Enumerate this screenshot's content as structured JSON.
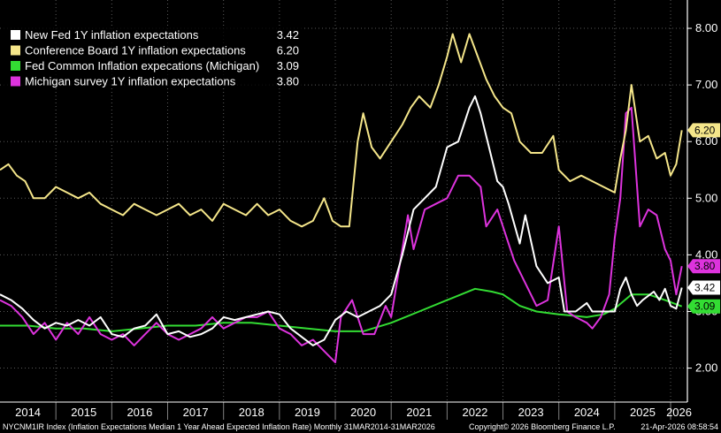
{
  "chart_data": {
    "type": "line",
    "ylim": [
      1.4,
      8.5
    ],
    "xlim": [
      2014.0,
      2026.3
    ],
    "yticks": [
      {
        "value": 2,
        "label": "2.00"
      },
      {
        "value": 3,
        "label": "3.00"
      },
      {
        "value": 4,
        "label": "4.00"
      },
      {
        "value": 5,
        "label": "5.00"
      },
      {
        "value": 6,
        "label": "6.00"
      },
      {
        "value": 7,
        "label": "7.00"
      },
      {
        "value": 8,
        "label": "8.00"
      }
    ],
    "xticks": [
      {
        "value": 2014.5,
        "label": "2014"
      },
      {
        "value": 2015.5,
        "label": "2015"
      },
      {
        "value": 2016.5,
        "label": "2016"
      },
      {
        "value": 2017.5,
        "label": "2017"
      },
      {
        "value": 2018.5,
        "label": "2018"
      },
      {
        "value": 2019.5,
        "label": "2019"
      },
      {
        "value": 2020.5,
        "label": "2020"
      },
      {
        "value": 2021.5,
        "label": "2021"
      },
      {
        "value": 2022.5,
        "label": "2022"
      },
      {
        "value": 2023.5,
        "label": "2023"
      },
      {
        "value": 2024.5,
        "label": "2024"
      },
      {
        "value": 2025.5,
        "label": "2025"
      },
      {
        "value": 2026.15,
        "label": "2026"
      }
    ],
    "grid": true,
    "legend_position": "top-left",
    "series": [
      {
        "name": "New Fed 1Y inflation expectations",
        "last_value": "3.42",
        "color": "#ffffff",
        "points": [
          [
            2014.0,
            3.3
          ],
          [
            2014.2,
            3.2
          ],
          [
            2014.4,
            3.05
          ],
          [
            2014.6,
            2.85
          ],
          [
            2014.8,
            2.7
          ],
          [
            2015.0,
            2.8
          ],
          [
            2015.2,
            2.75
          ],
          [
            2015.4,
            2.85
          ],
          [
            2015.6,
            2.75
          ],
          [
            2015.8,
            2.9
          ],
          [
            2016.0,
            2.6
          ],
          [
            2016.2,
            2.55
          ],
          [
            2016.4,
            2.7
          ],
          [
            2016.6,
            2.75
          ],
          [
            2016.8,
            2.95
          ],
          [
            2017.0,
            2.6
          ],
          [
            2017.2,
            2.65
          ],
          [
            2017.4,
            2.55
          ],
          [
            2017.6,
            2.6
          ],
          [
            2017.8,
            2.7
          ],
          [
            2018.0,
            2.9
          ],
          [
            2018.2,
            2.85
          ],
          [
            2018.4,
            2.9
          ],
          [
            2018.6,
            2.95
          ],
          [
            2018.8,
            3.0
          ],
          [
            2019.0,
            2.95
          ],
          [
            2019.2,
            2.7
          ],
          [
            2019.4,
            2.55
          ],
          [
            2019.6,
            2.4
          ],
          [
            2019.8,
            2.5
          ],
          [
            2020.0,
            2.85
          ],
          [
            2020.2,
            3.0
          ],
          [
            2020.4,
            2.9
          ],
          [
            2020.6,
            3.0
          ],
          [
            2020.8,
            3.1
          ],
          [
            2021.0,
            3.3
          ],
          [
            2021.2,
            4.0
          ],
          [
            2021.4,
            4.8
          ],
          [
            2021.6,
            5.0
          ],
          [
            2021.8,
            5.2
          ],
          [
            2022.0,
            5.9
          ],
          [
            2022.2,
            6.0
          ],
          [
            2022.4,
            6.6
          ],
          [
            2022.5,
            6.8
          ],
          [
            2022.6,
            6.5
          ],
          [
            2022.8,
            5.7
          ],
          [
            2022.9,
            5.3
          ],
          [
            2023.0,
            5.2
          ],
          [
            2023.1,
            4.9
          ],
          [
            2023.3,
            4.2
          ],
          [
            2023.4,
            4.7
          ],
          [
            2023.6,
            3.8
          ],
          [
            2023.8,
            3.5
          ],
          [
            2024.0,
            3.6
          ],
          [
            2024.1,
            3.0
          ],
          [
            2024.3,
            3.0
          ],
          [
            2024.5,
            3.15
          ],
          [
            2024.6,
            3.0
          ],
          [
            2024.8,
            3.0
          ],
          [
            2025.0,
            3.0
          ],
          [
            2025.1,
            3.4
          ],
          [
            2025.2,
            3.6
          ],
          [
            2025.3,
            3.3
          ],
          [
            2025.4,
            3.1
          ],
          [
            2025.5,
            3.2
          ],
          [
            2025.7,
            3.35
          ],
          [
            2025.8,
            3.2
          ],
          [
            2025.9,
            3.4
          ],
          [
            2026.0,
            3.1
          ],
          [
            2026.1,
            3.05
          ],
          [
            2026.2,
            3.42
          ]
        ]
      },
      {
        "name": "Conference Board 1Y inflation expectations",
        "last_value": "6.20",
        "color": "#f5e68a",
        "points": [
          [
            2014.0,
            5.5
          ],
          [
            2014.15,
            5.6
          ],
          [
            2014.3,
            5.4
          ],
          [
            2014.45,
            5.3
          ],
          [
            2014.6,
            5.0
          ],
          [
            2014.8,
            5.0
          ],
          [
            2015.0,
            5.2
          ],
          [
            2015.2,
            5.1
          ],
          [
            2015.4,
            5.0
          ],
          [
            2015.6,
            5.1
          ],
          [
            2015.8,
            4.9
          ],
          [
            2016.0,
            4.8
          ],
          [
            2016.2,
            4.7
          ],
          [
            2016.4,
            4.9
          ],
          [
            2016.6,
            4.8
          ],
          [
            2016.8,
            4.7
          ],
          [
            2017.0,
            4.8
          ],
          [
            2017.2,
            4.9
          ],
          [
            2017.4,
            4.7
          ],
          [
            2017.6,
            4.8
          ],
          [
            2017.8,
            4.6
          ],
          [
            2018.0,
            4.9
          ],
          [
            2018.2,
            4.8
          ],
          [
            2018.4,
            4.7
          ],
          [
            2018.6,
            4.9
          ],
          [
            2018.8,
            4.7
          ],
          [
            2019.0,
            4.8
          ],
          [
            2019.2,
            4.6
          ],
          [
            2019.4,
            4.5
          ],
          [
            2019.6,
            4.6
          ],
          [
            2019.8,
            5.0
          ],
          [
            2019.95,
            4.6
          ],
          [
            2020.1,
            4.5
          ],
          [
            2020.25,
            4.5
          ],
          [
            2020.4,
            6.0
          ],
          [
            2020.5,
            6.5
          ],
          [
            2020.65,
            5.9
          ],
          [
            2020.8,
            5.7
          ],
          [
            2021.0,
            6.0
          ],
          [
            2021.2,
            6.3
          ],
          [
            2021.35,
            6.6
          ],
          [
            2021.5,
            6.8
          ],
          [
            2021.7,
            6.6
          ],
          [
            2021.85,
            7.0
          ],
          [
            2022.0,
            7.5
          ],
          [
            2022.1,
            7.9
          ],
          [
            2022.25,
            7.4
          ],
          [
            2022.4,
            7.9
          ],
          [
            2022.55,
            7.5
          ],
          [
            2022.7,
            7.1
          ],
          [
            2022.85,
            6.8
          ],
          [
            2023.0,
            6.6
          ],
          [
            2023.15,
            6.5
          ],
          [
            2023.3,
            6.0
          ],
          [
            2023.5,
            5.8
          ],
          [
            2023.7,
            5.8
          ],
          [
            2023.9,
            6.1
          ],
          [
            2024.0,
            5.5
          ],
          [
            2024.2,
            5.3
          ],
          [
            2024.4,
            5.4
          ],
          [
            2024.6,
            5.3
          ],
          [
            2024.8,
            5.2
          ],
          [
            2025.0,
            5.1
          ],
          [
            2025.1,
            5.7
          ],
          [
            2025.2,
            6.2
          ],
          [
            2025.3,
            7.0
          ],
          [
            2025.45,
            6.0
          ],
          [
            2025.6,
            6.1
          ],
          [
            2025.75,
            5.7
          ],
          [
            2025.9,
            5.8
          ],
          [
            2026.0,
            5.4
          ],
          [
            2026.1,
            5.6
          ],
          [
            2026.2,
            6.2
          ]
        ]
      },
      {
        "name": "Fed Common Inflation expecations (Michigan)",
        "last_value": "3.09",
        "color": "#33dd33",
        "points": [
          [
            2014.0,
            2.75
          ],
          [
            2014.5,
            2.75
          ],
          [
            2015.0,
            2.7
          ],
          [
            2015.5,
            2.7
          ],
          [
            2016.0,
            2.65
          ],
          [
            2016.5,
            2.7
          ],
          [
            2017.0,
            2.75
          ],
          [
            2017.5,
            2.75
          ],
          [
            2018.0,
            2.8
          ],
          [
            2018.5,
            2.8
          ],
          [
            2019.0,
            2.75
          ],
          [
            2019.5,
            2.7
          ],
          [
            2020.0,
            2.65
          ],
          [
            2020.5,
            2.65
          ],
          [
            2021.0,
            2.8
          ],
          [
            2021.5,
            3.0
          ],
          [
            2022.0,
            3.2
          ],
          [
            2022.5,
            3.4
          ],
          [
            2022.8,
            3.35
          ],
          [
            2023.0,
            3.3
          ],
          [
            2023.3,
            3.1
          ],
          [
            2023.6,
            3.0
          ],
          [
            2024.0,
            2.95
          ],
          [
            2024.5,
            2.9
          ],
          [
            2024.8,
            2.95
          ],
          [
            2025.0,
            3.05
          ],
          [
            2025.3,
            3.3
          ],
          [
            2025.6,
            3.3
          ],
          [
            2025.9,
            3.2
          ],
          [
            2026.2,
            3.09
          ]
        ]
      },
      {
        "name": "Michigan survey 1Y inflation expectations",
        "last_value": "3.80",
        "color": "#dd33dd",
        "points": [
          [
            2014.0,
            3.2
          ],
          [
            2014.2,
            3.1
          ],
          [
            2014.4,
            2.9
          ],
          [
            2014.6,
            2.6
          ],
          [
            2014.8,
            2.8
          ],
          [
            2015.0,
            2.5
          ],
          [
            2015.2,
            2.8
          ],
          [
            2015.4,
            2.6
          ],
          [
            2015.6,
            2.9
          ],
          [
            2015.8,
            2.6
          ],
          [
            2016.0,
            2.5
          ],
          [
            2016.2,
            2.6
          ],
          [
            2016.4,
            2.4
          ],
          [
            2016.6,
            2.6
          ],
          [
            2016.8,
            2.8
          ],
          [
            2017.0,
            2.6
          ],
          [
            2017.2,
            2.5
          ],
          [
            2017.4,
            2.6
          ],
          [
            2017.6,
            2.7
          ],
          [
            2017.8,
            2.9
          ],
          [
            2018.0,
            2.7
          ],
          [
            2018.2,
            2.8
          ],
          [
            2018.4,
            2.9
          ],
          [
            2018.6,
            2.9
          ],
          [
            2018.8,
            3.0
          ],
          [
            2019.0,
            2.7
          ],
          [
            2019.2,
            2.6
          ],
          [
            2019.4,
            2.4
          ],
          [
            2019.6,
            2.5
          ],
          [
            2019.8,
            2.3
          ],
          [
            2020.0,
            2.1
          ],
          [
            2020.1,
            2.9
          ],
          [
            2020.3,
            3.2
          ],
          [
            2020.5,
            2.6
          ],
          [
            2020.7,
            2.6
          ],
          [
            2020.9,
            3.1
          ],
          [
            2021.0,
            2.9
          ],
          [
            2021.1,
            3.5
          ],
          [
            2021.3,
            4.7
          ],
          [
            2021.4,
            4.1
          ],
          [
            2021.6,
            4.8
          ],
          [
            2021.8,
            4.9
          ],
          [
            2022.0,
            5.0
          ],
          [
            2022.2,
            5.4
          ],
          [
            2022.4,
            5.4
          ],
          [
            2022.6,
            5.2
          ],
          [
            2022.7,
            4.5
          ],
          [
            2022.9,
            4.8
          ],
          [
            2023.0,
            4.5
          ],
          [
            2023.2,
            3.9
          ],
          [
            2023.4,
            3.5
          ],
          [
            2023.6,
            3.1
          ],
          [
            2023.8,
            3.2
          ],
          [
            2024.0,
            4.5
          ],
          [
            2024.15,
            3.0
          ],
          [
            2024.3,
            2.9
          ],
          [
            2024.5,
            2.8
          ],
          [
            2024.6,
            2.7
          ],
          [
            2024.75,
            2.9
          ],
          [
            2024.9,
            3.3
          ],
          [
            2025.0,
            4.3
          ],
          [
            2025.1,
            5.0
          ],
          [
            2025.2,
            6.5
          ],
          [
            2025.3,
            6.6
          ],
          [
            2025.45,
            4.5
          ],
          [
            2025.6,
            4.8
          ],
          [
            2025.75,
            4.7
          ],
          [
            2025.9,
            4.1
          ],
          [
            2026.0,
            3.9
          ],
          [
            2026.1,
            3.3
          ],
          [
            2026.2,
            3.8
          ]
        ]
      }
    ]
  },
  "footer": {
    "left": "NYCNM1IR Index (Inflation Expectations Median 1 Year Ahead Expected Inflation Rate) Monthly 31MAR2014-31MAR2026",
    "copyright": "Copyright© 2026 Bloomberg Finance L.P.",
    "timestamp": "21-Apr-2026 08:58:54"
  }
}
